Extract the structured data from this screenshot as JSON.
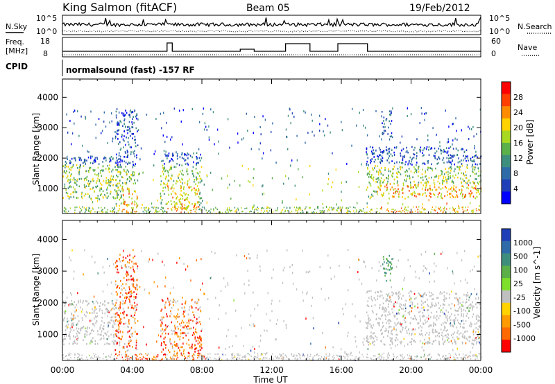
{
  "header": {
    "station": "King Salmon (fitACF)",
    "beam": "Beam 05",
    "date": "19/Feb/2012"
  },
  "noise_panel": {
    "left_label": "N.Sky",
    "right_label": "N.Search",
    "left_ticks": [
      "10^5",
      "10^0"
    ],
    "right_ticks": [
      "10^5",
      "10^0"
    ]
  },
  "freq_panel": {
    "left_label_top": "Freq.",
    "left_label_bottom": "[MHz]",
    "left_ticks": [
      "18",
      "8"
    ],
    "right_label": "Nave",
    "right_ticks": [
      "60",
      "0"
    ]
  },
  "cpid": {
    "label": "CPID",
    "text": "normalsound (fast) -157 RF"
  },
  "chart_data": [
    {
      "type": "heatmap",
      "parameter": "Power",
      "xlabel": "Time UT",
      "ylabel": "Slant Range [km]",
      "x_tick_labels": [
        "00:00",
        "04:00",
        "08:00",
        "12:00",
        "16:00",
        "20:00",
        "00:00"
      ],
      "x_range_hours": [
        0,
        24
      ],
      "y_range_km": [
        180,
        4600
      ],
      "y_ticks": [
        1000,
        2000,
        3000,
        4000
      ],
      "colorbar_label": "Power [dB]",
      "colorbar_ticks": [
        "28",
        "24",
        "20",
        "16",
        "12",
        "8",
        "4"
      ],
      "colorbar_colors": [
        "#ff0000",
        "#ff4000",
        "#ff8c00",
        "#ffd200",
        "#a8d822",
        "#5bb04a",
        "#3e8e7e",
        "#2f6ba8",
        "#1f3fb8",
        "#0000ff"
      ],
      "echo_regions": [
        {
          "t": [
            0.0,
            3.3
          ],
          "range_km": [
            700,
            2100
          ],
          "dominant_power_db": 12
        },
        {
          "t": [
            3.0,
            4.3
          ],
          "range_km": [
            450,
            3600
          ],
          "dominant_power_db": 18
        },
        {
          "t": [
            5.6,
            8.0
          ],
          "range_km": [
            350,
            2200
          ],
          "dominant_power_db": 18
        },
        {
          "t": [
            17.4,
            24.0
          ],
          "range_km": [
            700,
            2400
          ],
          "dominant_power_db": 18
        },
        {
          "t": [
            18.3,
            18.9
          ],
          "range_km": [
            2700,
            3600
          ],
          "dominant_power_db": 20
        }
      ]
    },
    {
      "type": "heatmap",
      "parameter": "Velocity",
      "xlabel": "Time UT",
      "ylabel": "Slant Range [km]",
      "x_tick_labels": [
        "00:00",
        "04:00",
        "08:00",
        "12:00",
        "16:00",
        "20:00",
        "00:00"
      ],
      "x_range_hours": [
        0,
        24
      ],
      "y_range_km": [
        180,
        4600
      ],
      "y_ticks": [
        1000,
        2000,
        3000,
        4000
      ],
      "colorbar_label": "Velocity [m s^-1]",
      "colorbar_ticks": [
        "1000",
        "500",
        "100",
        "25",
        "-25",
        "-100",
        "-500",
        "-1000"
      ],
      "colorbar_colors": [
        "#1f3fb8",
        "#2f6ba8",
        "#3e8e7e",
        "#5bb04a",
        "#7fe02c",
        "#c0c0c0",
        "#ffd200",
        "#ff9a00",
        "#ff6a00",
        "#ff0000"
      ],
      "echo_regions": [
        {
          "t": [
            0.0,
            3.3
          ],
          "range_km": [
            700,
            2100
          ],
          "dominant_velocity": 0
        },
        {
          "t": [
            3.0,
            4.3
          ],
          "range_km": [
            450,
            3600
          ],
          "dominant_velocity": -300
        },
        {
          "t": [
            5.6,
            8.0
          ],
          "range_km": [
            350,
            2200
          ],
          "dominant_velocity": -300
        },
        {
          "t": [
            17.4,
            24.0
          ],
          "range_km": [
            700,
            2400
          ],
          "dominant_velocity": 0
        },
        {
          "t": [
            18.3,
            18.9
          ],
          "range_km": [
            2700,
            3600
          ],
          "dominant_velocity": 100
        }
      ]
    }
  ]
}
